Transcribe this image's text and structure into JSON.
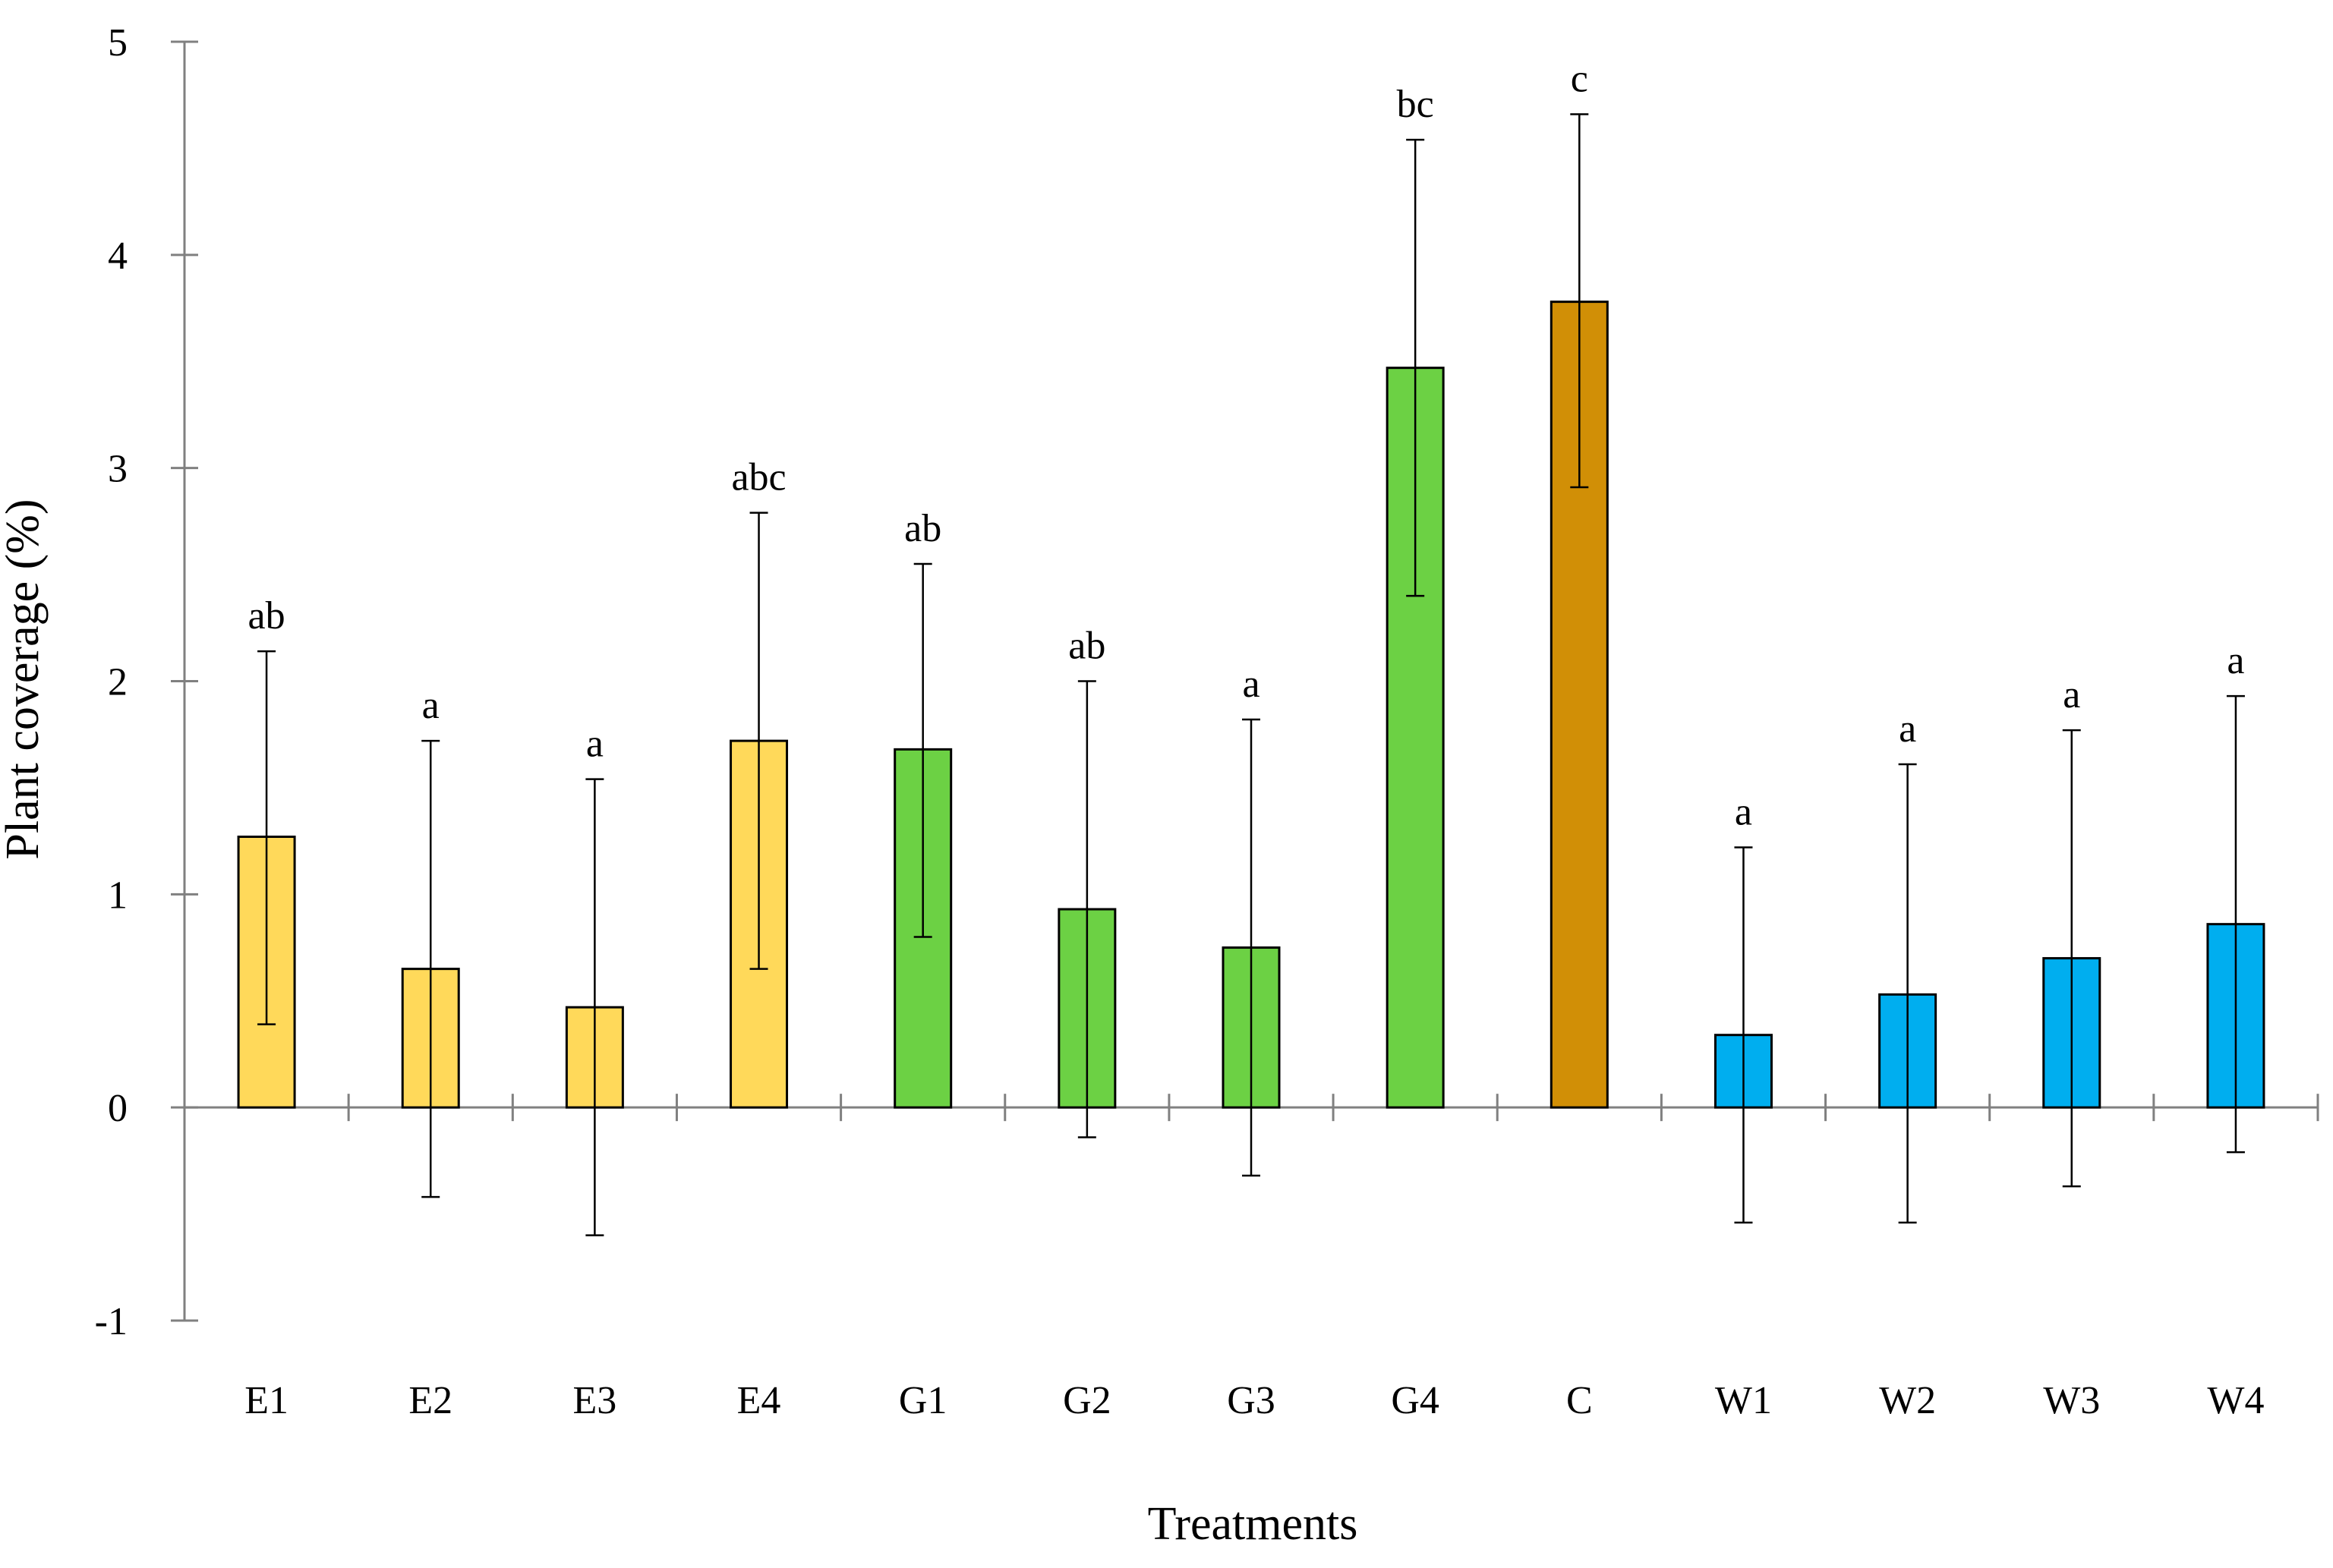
{
  "chart_data": {
    "type": "bar",
    "title": "",
    "xlabel": "Treatments",
    "ylabel": "Plant coverage (%)",
    "ylim": [
      -1,
      5
    ],
    "yticks": [
      -1,
      0,
      1,
      2,
      3,
      4,
      5
    ],
    "grid": false,
    "categories": [
      "E1",
      "E2",
      "E3",
      "E4",
      "G1",
      "G2",
      "G3",
      "G4",
      "C",
      "W1",
      "W2",
      "W3",
      "W4"
    ],
    "values": [
      1.27,
      0.65,
      0.47,
      1.72,
      1.68,
      0.93,
      0.75,
      3.47,
      3.78,
      0.34,
      0.53,
      0.7,
      0.86
    ],
    "error_low": [
      0.39,
      -0.42,
      -0.6,
      0.65,
      0.8,
      -0.14,
      -0.32,
      2.4,
      2.91,
      -0.54,
      -0.54,
      -0.37,
      -0.21
    ],
    "error_high": [
      2.14,
      1.72,
      1.54,
      2.79,
      2.55,
      2.0,
      1.82,
      4.54,
      4.66,
      1.22,
      1.61,
      1.77,
      1.93
    ],
    "significance": [
      "ab",
      "a",
      "a",
      "abc",
      "ab",
      "ab",
      "a",
      "bc",
      "c",
      "a",
      "a",
      "a",
      "a"
    ],
    "groups": [
      "E",
      "E",
      "E",
      "E",
      "G",
      "G",
      "G",
      "G",
      "C",
      "W",
      "W",
      "W",
      "W"
    ],
    "colors": {
      "E": "#FFD95A",
      "G": "#6CD144",
      "C": "#D18F06",
      "W": "#00AEEF",
      "axis": "#808080",
      "bar_edge": "#000000",
      "error_bar": "#000000"
    }
  }
}
